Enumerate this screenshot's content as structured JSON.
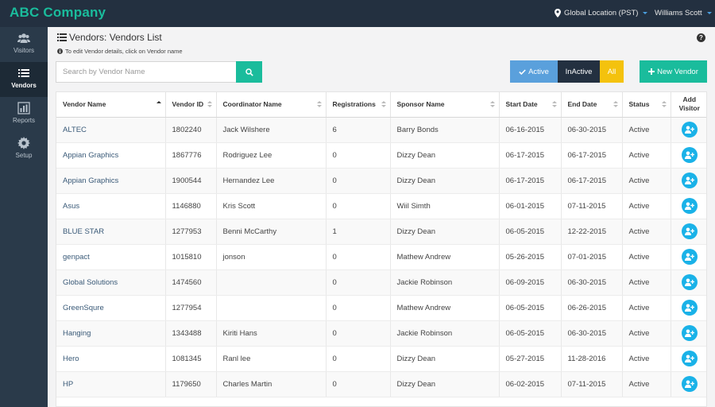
{
  "app": {
    "brand": "ABC Company",
    "location": "Global Location (PST)",
    "user": "Williams Scott"
  },
  "sidebar": {
    "items": [
      {
        "label": "Visitors",
        "icon": "users-icon"
      },
      {
        "label": "Vendors",
        "icon": "list-icon",
        "active": true
      },
      {
        "label": "Reports",
        "icon": "bar-chart-icon"
      },
      {
        "label": "Setup",
        "icon": "gear-icon"
      }
    ]
  },
  "page": {
    "title": "Vendors: Vendors List",
    "hint": "To edit Vendor details, click on Vendor name"
  },
  "search": {
    "placeholder": "Search by Vendor Name",
    "value": ""
  },
  "filters": {
    "active": "Active",
    "inactive": "InActive",
    "all": "All"
  },
  "new_vendor_label": "New Vendor",
  "table": {
    "columns": [
      "Vendor Name",
      "Vendor ID",
      "Coordinator Name",
      "Registrations",
      "Sponsor Name",
      "Start Date",
      "End Date",
      "Status",
      "Add Visitor"
    ],
    "rows": [
      [
        "ALTEC",
        "1802240",
        "Jack Wilshere",
        "6",
        "Barry Bonds",
        "06-16-2015",
        "06-30-2015",
        "Active"
      ],
      [
        "Appian Graphics",
        "1867776",
        "Rodriguez Lee",
        "0",
        "Dizzy Dean",
        "06-17-2015",
        "06-17-2015",
        "Active"
      ],
      [
        "Appian Graphics",
        "1900544",
        "Hernandez Lee",
        "0",
        "Dizzy Dean",
        "06-17-2015",
        "06-17-2015",
        "Active"
      ],
      [
        "Asus",
        "1146880",
        "Kris Scott",
        "0",
        "Wiil Simth",
        "06-01-2015",
        "07-11-2015",
        "Active"
      ],
      [
        "BLUE STAR",
        "1277953",
        "Benni McCarthy",
        "1",
        "Dizzy Dean",
        "06-05-2015",
        "12-22-2015",
        "Active"
      ],
      [
        "genpact",
        "1015810",
        "jonson",
        "0",
        "Mathew Andrew",
        "05-26-2015",
        "07-01-2015",
        "Active"
      ],
      [
        "Global Solutions",
        "1474560",
        "",
        "0",
        "Jackie Robinson",
        "06-09-2015",
        "06-30-2015",
        "Active"
      ],
      [
        "GreenSqure",
        "1277954",
        "",
        "0",
        "Mathew Andrew",
        "06-05-2015",
        "06-26-2015",
        "Active"
      ],
      [
        "Hanging",
        "1343488",
        "Kiriti Hans",
        "0",
        "Jackie Robinson",
        "06-05-2015",
        "06-30-2015",
        "Active"
      ],
      [
        "Hero",
        "1081345",
        "Ranl lee",
        "0",
        "Dizzy Dean",
        "05-27-2015",
        "11-28-2016",
        "Active"
      ],
      [
        "HP",
        "1179650",
        "Charles Martin",
        "0",
        "Dizzy Dean",
        "06-02-2015",
        "07-11-2015",
        "Active"
      ]
    ]
  },
  "colors": {
    "accent": "#1abc9c",
    "topbar": "#233040",
    "sidebar": "#2a3a4a",
    "active_filter": "#5aa0dc",
    "all_filter": "#f4c20d",
    "add_visitor": "#1ab2e8"
  }
}
